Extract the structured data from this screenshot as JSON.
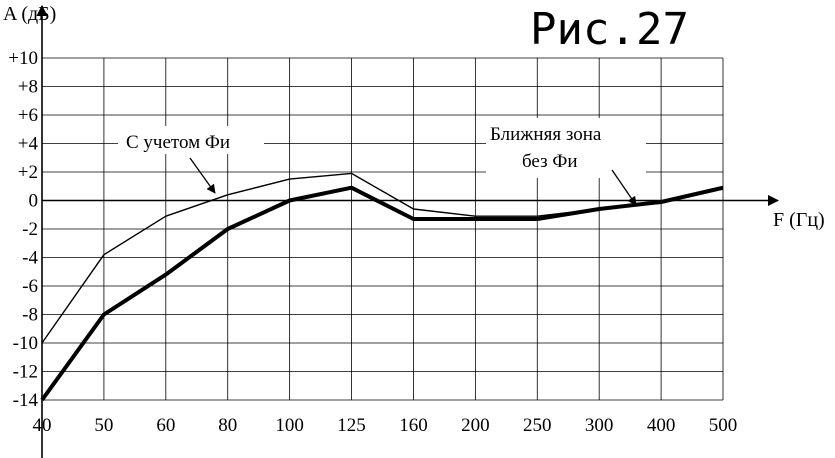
{
  "chart_data": {
    "type": "line",
    "figure_label": "Рис.27",
    "ylabel": "A (дБ)",
    "xlabel": "F (Гц)",
    "categories": [
      "40",
      "50",
      "60",
      "80",
      "100",
      "125",
      "160",
      "200",
      "250",
      "300",
      "400",
      "500"
    ],
    "y_ticks": [
      "+10",
      "+8",
      "+6",
      "+4",
      "+2",
      "0",
      "-2",
      "-4",
      "-6",
      "-8",
      "-10",
      "-12",
      "-14"
    ],
    "ylim": [
      -14,
      10
    ],
    "grid": true,
    "series": [
      {
        "values": [
          -10,
          -3.8,
          -1.1,
          0.4,
          1.5,
          1.9,
          -0.6,
          -1.1,
          -1.1,
          -0.6,
          -0.2,
          0.8
        ],
        "line_width": "thin"
      },
      {
        "values": [
          -14,
          -8,
          -5.2,
          -2,
          0,
          0.9,
          -1.3,
          -1.3,
          -1.3,
          -0.6,
          -0.1,
          0.9
        ],
        "line_width": "bold"
      }
    ],
    "annotations": [
      {
        "lines": [
          "С учетом Фи"
        ]
      },
      {
        "lines": [
          "Ближняя зона",
          "без Фи"
        ]
      }
    ]
  }
}
